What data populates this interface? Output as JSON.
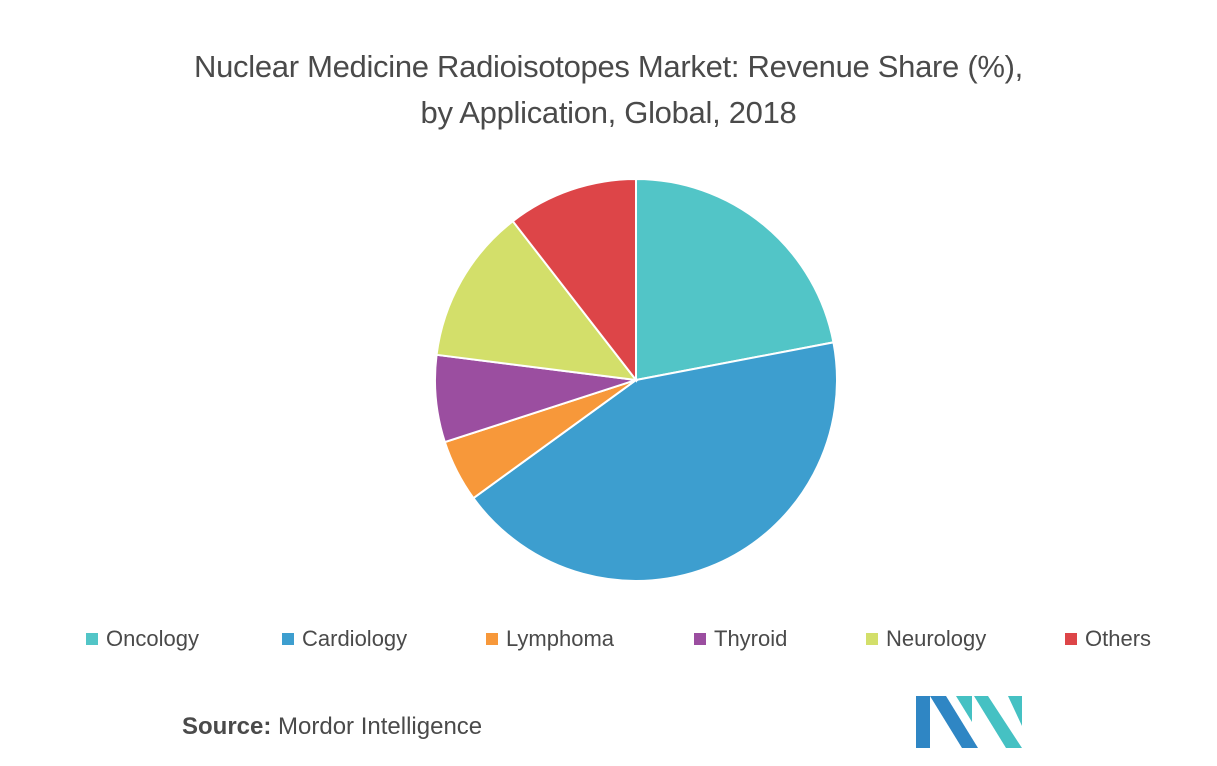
{
  "chart_data": {
    "type": "pie",
    "title": "Nuclear Medicine Radioisotopes Market: Revenue Share (%),",
    "subtitle": "by  Application, Global, 2018",
    "categories": [
      "Oncology",
      "Cardiology",
      "Lymphoma",
      "Thyroid",
      "Neurology",
      "Others"
    ],
    "values": [
      22,
      43,
      5,
      7,
      12.5,
      10.5
    ],
    "colors": [
      "#52c5c7",
      "#3d9ecf",
      "#f7983a",
      "#9b4ea0",
      "#d3df6a",
      "#dd4548"
    ],
    "legend_position": "bottom"
  },
  "source": {
    "label": "Source:",
    "text": "Mordor Intelligence"
  },
  "logo": {
    "icon": "mordor-intelligence-logo",
    "colors": [
      "#2f86c4",
      "#45c1c3"
    ]
  }
}
